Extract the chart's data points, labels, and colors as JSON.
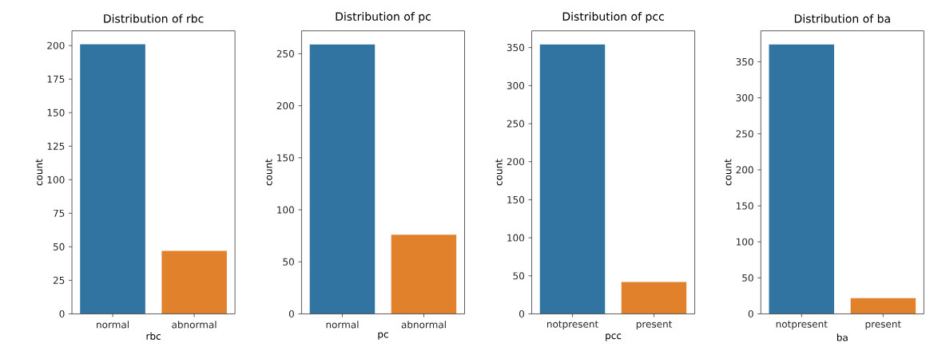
{
  "chart_data": [
    {
      "type": "bar",
      "title": "Distribution of rbc",
      "xlabel": "rbc",
      "ylabel": "count",
      "categories": [
        "normal",
        "abnormal"
      ],
      "values": [
        201,
        47
      ],
      "colors": [
        "#3274a1",
        "#e1812c"
      ],
      "ylim": [
        0,
        211
      ],
      "yticks": [
        0,
        25,
        50,
        75,
        100,
        125,
        150,
        175,
        200
      ]
    },
    {
      "type": "bar",
      "title": "Distribution of pc",
      "xlabel": "pc",
      "ylabel": "count",
      "categories": [
        "normal",
        "abnormal"
      ],
      "values": [
        259,
        76
      ],
      "colors": [
        "#3274a1",
        "#e1812c"
      ],
      "ylim": [
        0,
        272
      ],
      "yticks": [
        0,
        50,
        100,
        150,
        200,
        250
      ]
    },
    {
      "type": "bar",
      "title": "Distribution of pcc",
      "xlabel": "pcc",
      "ylabel": "count",
      "categories": [
        "notpresent",
        "present"
      ],
      "values": [
        354,
        42
      ],
      "colors": [
        "#3274a1",
        "#e1812c"
      ],
      "ylim": [
        0,
        372
      ],
      "yticks": [
        0,
        50,
        100,
        150,
        200,
        250,
        300,
        350
      ]
    },
    {
      "type": "bar",
      "title": "Distribution of ba",
      "xlabel": "ba",
      "ylabel": "count",
      "categories": [
        "notpresent",
        "present"
      ],
      "values": [
        374,
        22
      ],
      "colors": [
        "#3274a1",
        "#e1812c"
      ],
      "ylim": [
        0,
        393
      ],
      "yticks": [
        0,
        50,
        100,
        150,
        200,
        250,
        300,
        350
      ]
    }
  ]
}
